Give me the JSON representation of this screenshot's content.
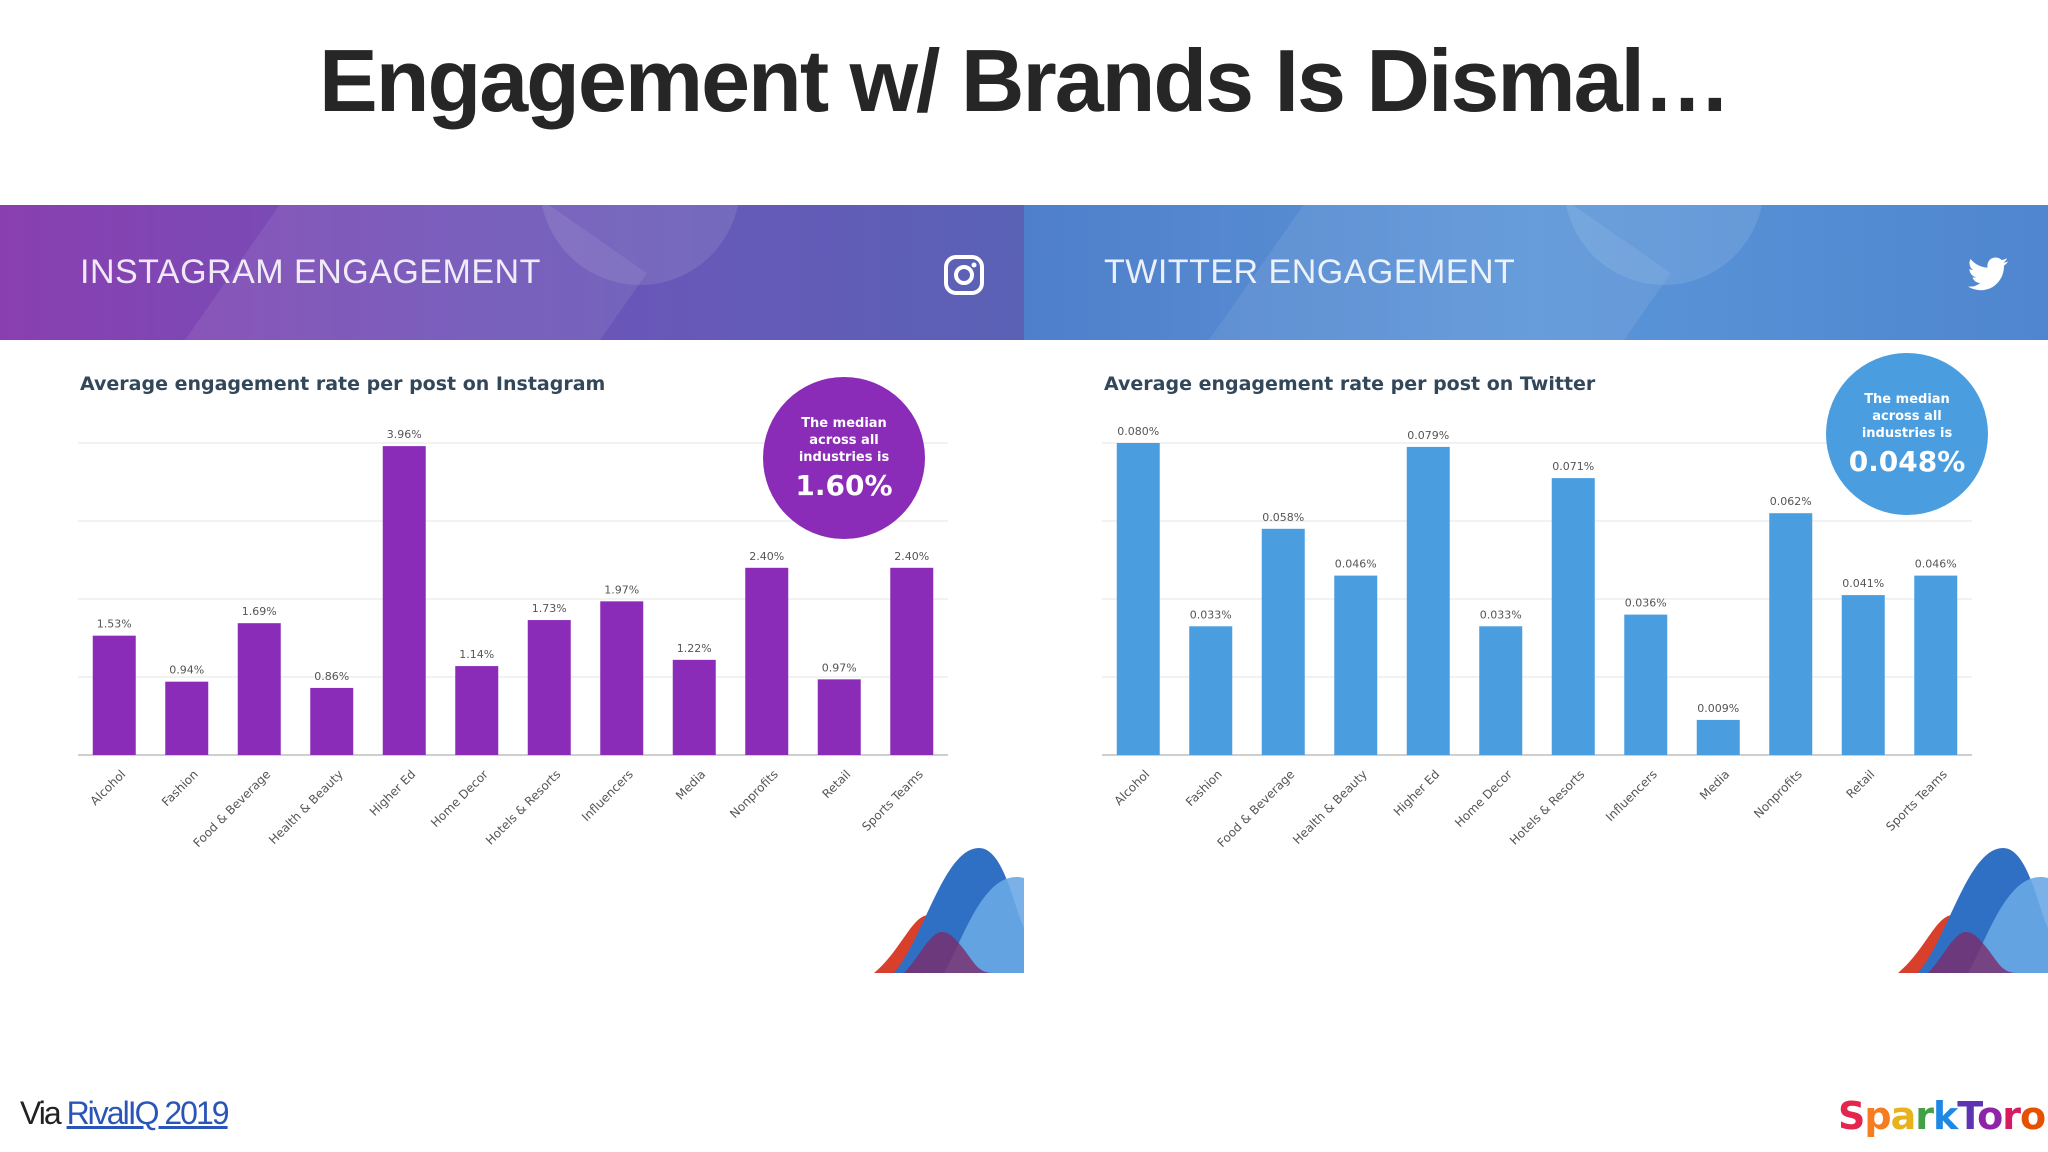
{
  "slide": {
    "title": "Engagement w/ Brands Is Dismal…"
  },
  "footer": {
    "via_prefix": "Via ",
    "source_link": "RivalIQ 2019",
    "logo_text": "SparkToro"
  },
  "colors": {
    "instagram_bar": "#8b2cb8",
    "twitter_bar": "#4a9ee0",
    "label_text": "#555555",
    "gridline": "#e6e6e6"
  },
  "panels": {
    "instagram": {
      "banner_title": "INSTAGRAM ENGAGEMENT",
      "icon": "instagram-icon",
      "median_text": "The median across all industries is",
      "median_value": "1.60%"
    },
    "twitter": {
      "banner_title": "TWITTER ENGAGEMENT",
      "icon": "twitter-bird-icon",
      "median_text": "The median across all industries is",
      "median_value": "0.048%"
    }
  },
  "chart_data": [
    {
      "type": "bar",
      "title": "Average engagement rate per post on Instagram",
      "categories": [
        "Alcohol",
        "Fashion",
        "Food & Beverage",
        "Health & Beauty",
        "Higher Ed",
        "Home Decor",
        "Hotels & Resorts",
        "Influencers",
        "Media",
        "Nonprofits",
        "Retail",
        "Sports Teams"
      ],
      "values": [
        1.53,
        0.94,
        1.69,
        0.86,
        3.96,
        1.14,
        1.73,
        1.97,
        1.22,
        2.4,
        0.97,
        2.4
      ],
      "data_labels": [
        "1.53%",
        "0.94%",
        "1.69%",
        "0.86%",
        "3.96%",
        "1.14%",
        "1.73%",
        "1.97%",
        "1.22%",
        "2.40%",
        "0.97%",
        "2.40%"
      ],
      "ylim": [
        0,
        4
      ],
      "grid": true,
      "legend": "none",
      "color": "#8b2cb8"
    },
    {
      "type": "bar",
      "title": "Average engagement rate per post on Twitter",
      "categories": [
        "Alcohol",
        "Fashion",
        "Food & Beverage",
        "Health & Beauty",
        "Higher Ed",
        "Home Decor",
        "Hotels & Resorts",
        "Influencers",
        "Media",
        "Nonprofits",
        "Retail",
        "Sports Teams"
      ],
      "values": [
        0.08,
        0.033,
        0.058,
        0.046,
        0.079,
        0.033,
        0.071,
        0.036,
        0.009,
        0.062,
        0.041,
        0.046
      ],
      "data_labels": [
        "0.080%",
        "0.033%",
        "0.058%",
        "0.046%",
        "0.079%",
        "0.033%",
        "0.071%",
        "0.036%",
        "0.009%",
        "0.062%",
        "0.041%",
        "0.046%"
      ],
      "ylim": [
        0,
        0.08
      ],
      "grid": true,
      "legend": "none",
      "color": "#4a9ee0"
    }
  ]
}
